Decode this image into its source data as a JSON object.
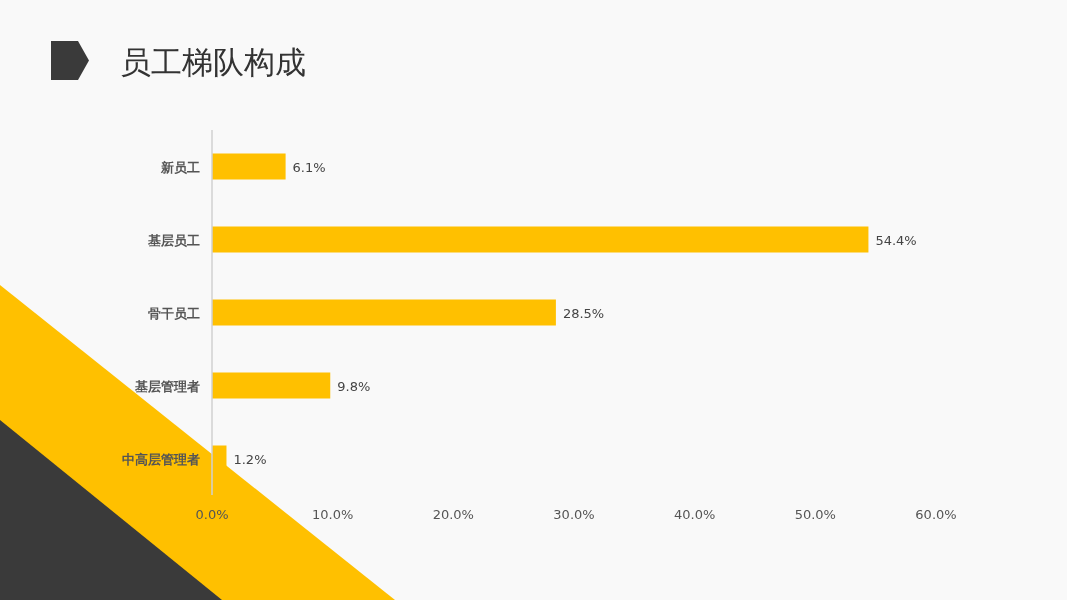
{
  "chart_data": {
    "type": "bar",
    "orientation": "horizontal",
    "title": "员工梯队构成",
    "categories": [
      "新员工",
      "基层员工",
      "骨干员工",
      "基层管理者",
      "中高层管理者"
    ],
    "values": [
      6.1,
      54.4,
      28.5,
      9.8,
      1.2
    ],
    "value_labels": [
      "6.1%",
      "54.4%",
      "28.5%",
      "9.8%",
      "1.2%"
    ],
    "color": "#ffc000",
    "xlim": [
      0,
      60
    ],
    "xticks": [
      {
        "value": 0,
        "label": "0.0%"
      },
      {
        "value": 10,
        "label": "10.0%"
      },
      {
        "value": 20,
        "label": "20.0%"
      },
      {
        "value": 30,
        "label": "30.0%"
      },
      {
        "value": 40,
        "label": "40.0%"
      },
      {
        "value": 50,
        "label": "50.0%"
      },
      {
        "value": 60,
        "label": "60.0%"
      }
    ]
  }
}
